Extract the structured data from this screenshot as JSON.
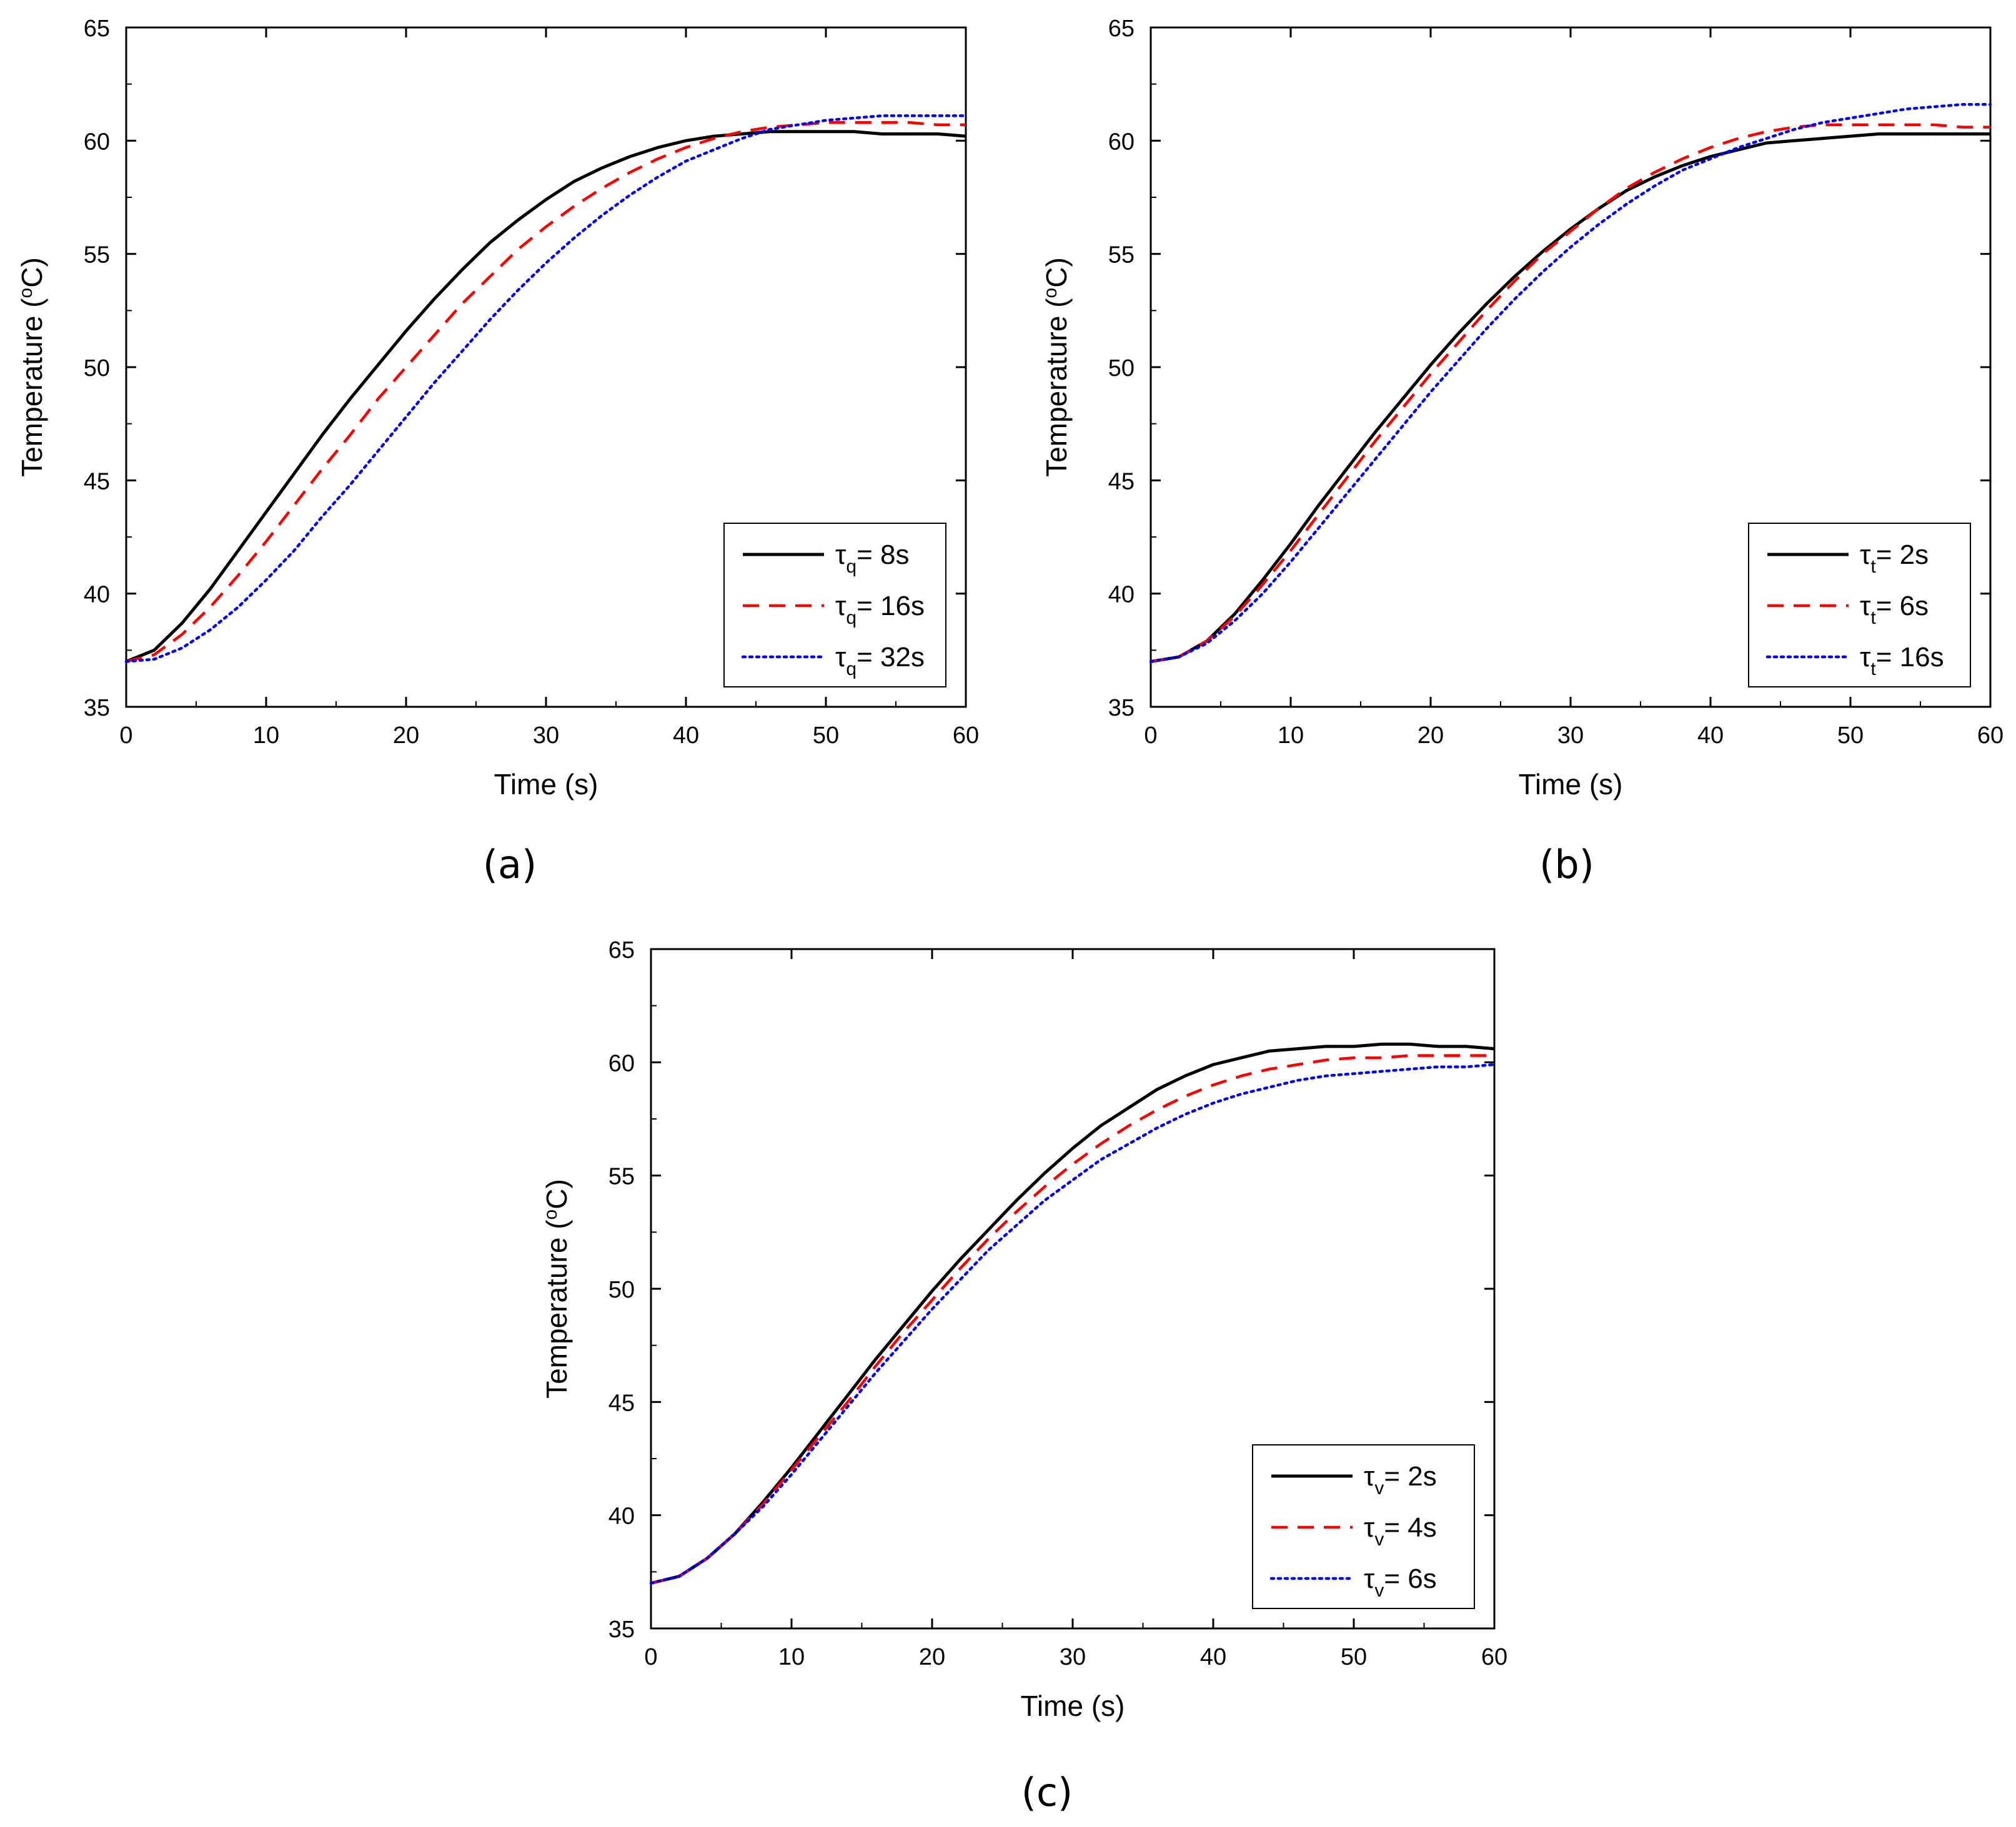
{
  "figure": {
    "panels": [
      "(a)",
      "(b)",
      "(c)"
    ]
  },
  "chart_data": [
    {
      "panel": "(a)",
      "type": "line",
      "xlabel": "Time (s)",
      "ylabel_prefix": "Temperature (",
      "ylabel_sup": "o",
      "ylabel_suffix": "C)",
      "xlim": [
        0,
        60
      ],
      "ylim": [
        35,
        65
      ],
      "xticks": [
        0,
        10,
        20,
        30,
        40,
        50,
        60
      ],
      "yticks": [
        35,
        40,
        45,
        50,
        55,
        60,
        65
      ],
      "x": [
        0,
        2,
        4,
        6,
        8,
        10,
        12,
        14,
        16,
        18,
        20,
        22,
        24,
        26,
        28,
        30,
        32,
        34,
        36,
        38,
        40,
        42,
        44,
        46,
        48,
        50,
        52,
        54,
        56,
        58,
        60
      ],
      "legend_position": "bottom-right",
      "series": [
        {
          "name": "τq= 8s",
          "symbol": "τ",
          "sub": "q",
          "rest": "= 8s",
          "color": "#000000",
          "style": "solid",
          "values": [
            37.0,
            37.5,
            38.7,
            40.2,
            41.9,
            43.6,
            45.3,
            47.0,
            48.6,
            50.1,
            51.6,
            53.0,
            54.3,
            55.5,
            56.5,
            57.4,
            58.2,
            58.8,
            59.3,
            59.7,
            60.0,
            60.2,
            60.3,
            60.4,
            60.4,
            60.4,
            60.4,
            60.3,
            60.3,
            60.3,
            60.2
          ]
        },
        {
          "name": "τq= 16s",
          "symbol": "τ",
          "sub": "q",
          "rest": "= 16s",
          "color": "#ff0000",
          "style": "dashed",
          "values": [
            37.0,
            37.3,
            38.2,
            39.4,
            40.8,
            42.3,
            43.9,
            45.5,
            47.0,
            48.6,
            50.0,
            51.4,
            52.8,
            54.0,
            55.2,
            56.2,
            57.1,
            57.9,
            58.6,
            59.2,
            59.7,
            60.1,
            60.4,
            60.6,
            60.7,
            60.8,
            60.8,
            60.8,
            60.8,
            60.7,
            60.7
          ]
        },
        {
          "name": "τq= 32s",
          "symbol": "τ",
          "sub": "q",
          "rest": "= 32s",
          "color": "#0000ff",
          "style": "dotted",
          "values": [
            37.0,
            37.1,
            37.6,
            38.4,
            39.4,
            40.6,
            41.9,
            43.4,
            44.8,
            46.3,
            47.8,
            49.3,
            50.7,
            52.1,
            53.4,
            54.6,
            55.7,
            56.7,
            57.6,
            58.4,
            59.1,
            59.6,
            60.1,
            60.5,
            60.7,
            60.9,
            61.0,
            61.1,
            61.1,
            61.1,
            61.1
          ]
        }
      ]
    },
    {
      "panel": "(b)",
      "type": "line",
      "xlabel": "Time (s)",
      "ylabel_prefix": "Temperature (",
      "ylabel_sup": "o",
      "ylabel_suffix": "C)",
      "xlim": [
        0,
        60
      ],
      "ylim": [
        35,
        65
      ],
      "xticks": [
        0,
        10,
        20,
        30,
        40,
        50,
        60
      ],
      "yticks": [
        35,
        40,
        45,
        50,
        55,
        60,
        65
      ],
      "x": [
        0,
        2,
        4,
        6,
        8,
        10,
        12,
        14,
        16,
        18,
        20,
        22,
        24,
        26,
        28,
        30,
        32,
        34,
        36,
        38,
        40,
        42,
        44,
        46,
        48,
        50,
        52,
        54,
        56,
        58,
        60
      ],
      "legend_position": "bottom-right",
      "series": [
        {
          "name": "τt= 2s",
          "symbol": "τ",
          "sub": "t",
          "rest": "= 2s",
          "color": "#000000",
          "style": "solid",
          "values": [
            37.0,
            37.2,
            37.9,
            39.1,
            40.6,
            42.2,
            43.9,
            45.5,
            47.1,
            48.6,
            50.1,
            51.5,
            52.8,
            54.0,
            55.1,
            56.1,
            57.0,
            57.8,
            58.4,
            58.9,
            59.3,
            59.6,
            59.9,
            60.0,
            60.1,
            60.2,
            60.3,
            60.3,
            60.3,
            60.3,
            60.3
          ]
        },
        {
          "name": "τt= 6s",
          "symbol": "τ",
          "sub": "t",
          "rest": "= 6s",
          "color": "#ff0000",
          "style": "dashed",
          "values": [
            37.0,
            37.2,
            37.9,
            39.0,
            40.4,
            41.9,
            43.5,
            45.1,
            46.7,
            48.2,
            49.7,
            51.1,
            52.5,
            53.8,
            55.0,
            56.0,
            57.0,
            57.9,
            58.6,
            59.2,
            59.7,
            60.1,
            60.4,
            60.6,
            60.7,
            60.7,
            60.7,
            60.7,
            60.7,
            60.6,
            60.6
          ]
        },
        {
          "name": "τt= 16s",
          "symbol": "τ",
          "sub": "t",
          "rest": "= 16s",
          "color": "#0000ff",
          "style": "dotted",
          "values": [
            37.0,
            37.2,
            37.8,
            38.8,
            40.0,
            41.4,
            42.9,
            44.4,
            45.9,
            47.4,
            48.9,
            50.3,
            51.7,
            53.0,
            54.2,
            55.3,
            56.3,
            57.2,
            58.0,
            58.7,
            59.2,
            59.7,
            60.1,
            60.5,
            60.8,
            61.0,
            61.2,
            61.4,
            61.5,
            61.6,
            61.6
          ]
        }
      ]
    },
    {
      "panel": "(c)",
      "type": "line",
      "xlabel": "Time (s)",
      "ylabel_prefix": "Temperature (",
      "ylabel_sup": "o",
      "ylabel_suffix": "C)",
      "xlim": [
        0,
        60
      ],
      "ylim": [
        35,
        65
      ],
      "xticks": [
        0,
        10,
        20,
        30,
        40,
        50,
        60
      ],
      "yticks": [
        35,
        40,
        45,
        50,
        55,
        60,
        65
      ],
      "x": [
        0,
        2,
        4,
        6,
        8,
        10,
        12,
        14,
        16,
        18,
        20,
        22,
        24,
        26,
        28,
        30,
        32,
        34,
        36,
        38,
        40,
        42,
        44,
        46,
        48,
        50,
        52,
        54,
        56,
        58,
        60
      ],
      "legend_position": "bottom-right",
      "series": [
        {
          "name": "τv= 2s",
          "symbol": "τ",
          "sub": "v",
          "rest": "= 2s",
          "color": "#000000",
          "style": "solid",
          "values": [
            37.0,
            37.3,
            38.1,
            39.2,
            40.6,
            42.1,
            43.7,
            45.3,
            46.9,
            48.4,
            49.9,
            51.3,
            52.6,
            53.9,
            55.1,
            56.2,
            57.2,
            58.0,
            58.8,
            59.4,
            59.9,
            60.2,
            60.5,
            60.6,
            60.7,
            60.7,
            60.8,
            60.8,
            60.7,
            60.7,
            60.6
          ]
        },
        {
          "name": "τv= 4s",
          "symbol": "τ",
          "sub": "v",
          "rest": "= 4s",
          "color": "#ff0000",
          "style": "dashed",
          "values": [
            37.0,
            37.3,
            38.1,
            39.2,
            40.5,
            42.0,
            43.5,
            45.0,
            46.6,
            48.1,
            49.5,
            50.9,
            52.2,
            53.4,
            54.5,
            55.5,
            56.4,
            57.2,
            57.9,
            58.5,
            59.0,
            59.4,
            59.7,
            59.9,
            60.1,
            60.2,
            60.2,
            60.3,
            60.3,
            60.3,
            60.3
          ]
        },
        {
          "name": "τv= 6s",
          "symbol": "τ",
          "sub": "v",
          "rest": "= 6s",
          "color": "#0000ff",
          "style": "dotted",
          "values": [
            37.0,
            37.3,
            38.1,
            39.2,
            40.4,
            41.8,
            43.3,
            44.8,
            46.3,
            47.7,
            49.1,
            50.4,
            51.7,
            52.8,
            53.9,
            54.8,
            55.7,
            56.4,
            57.1,
            57.7,
            58.2,
            58.6,
            58.9,
            59.2,
            59.4,
            59.5,
            59.6,
            59.7,
            59.8,
            59.8,
            59.9
          ]
        }
      ]
    }
  ]
}
